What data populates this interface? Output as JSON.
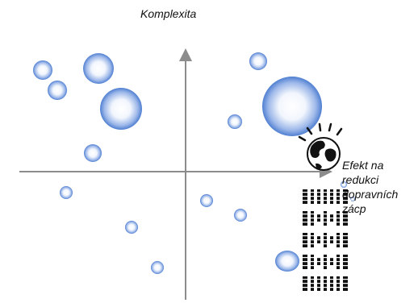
{
  "axes": {
    "y_label": "Komplexita",
    "x_label_lines": [
      "Efekt na",
      "redukci",
      "dopravních",
      "zácp"
    ]
  },
  "colors": {
    "axis": "#8c8c8c",
    "bubble_edge": "#4f7fd1",
    "bubble_center": "#ffffff",
    "logo": "#111111"
  },
  "icons": [
    "globe-icon",
    "ibm-logo-icon"
  ],
  "bubble_count": 16
}
